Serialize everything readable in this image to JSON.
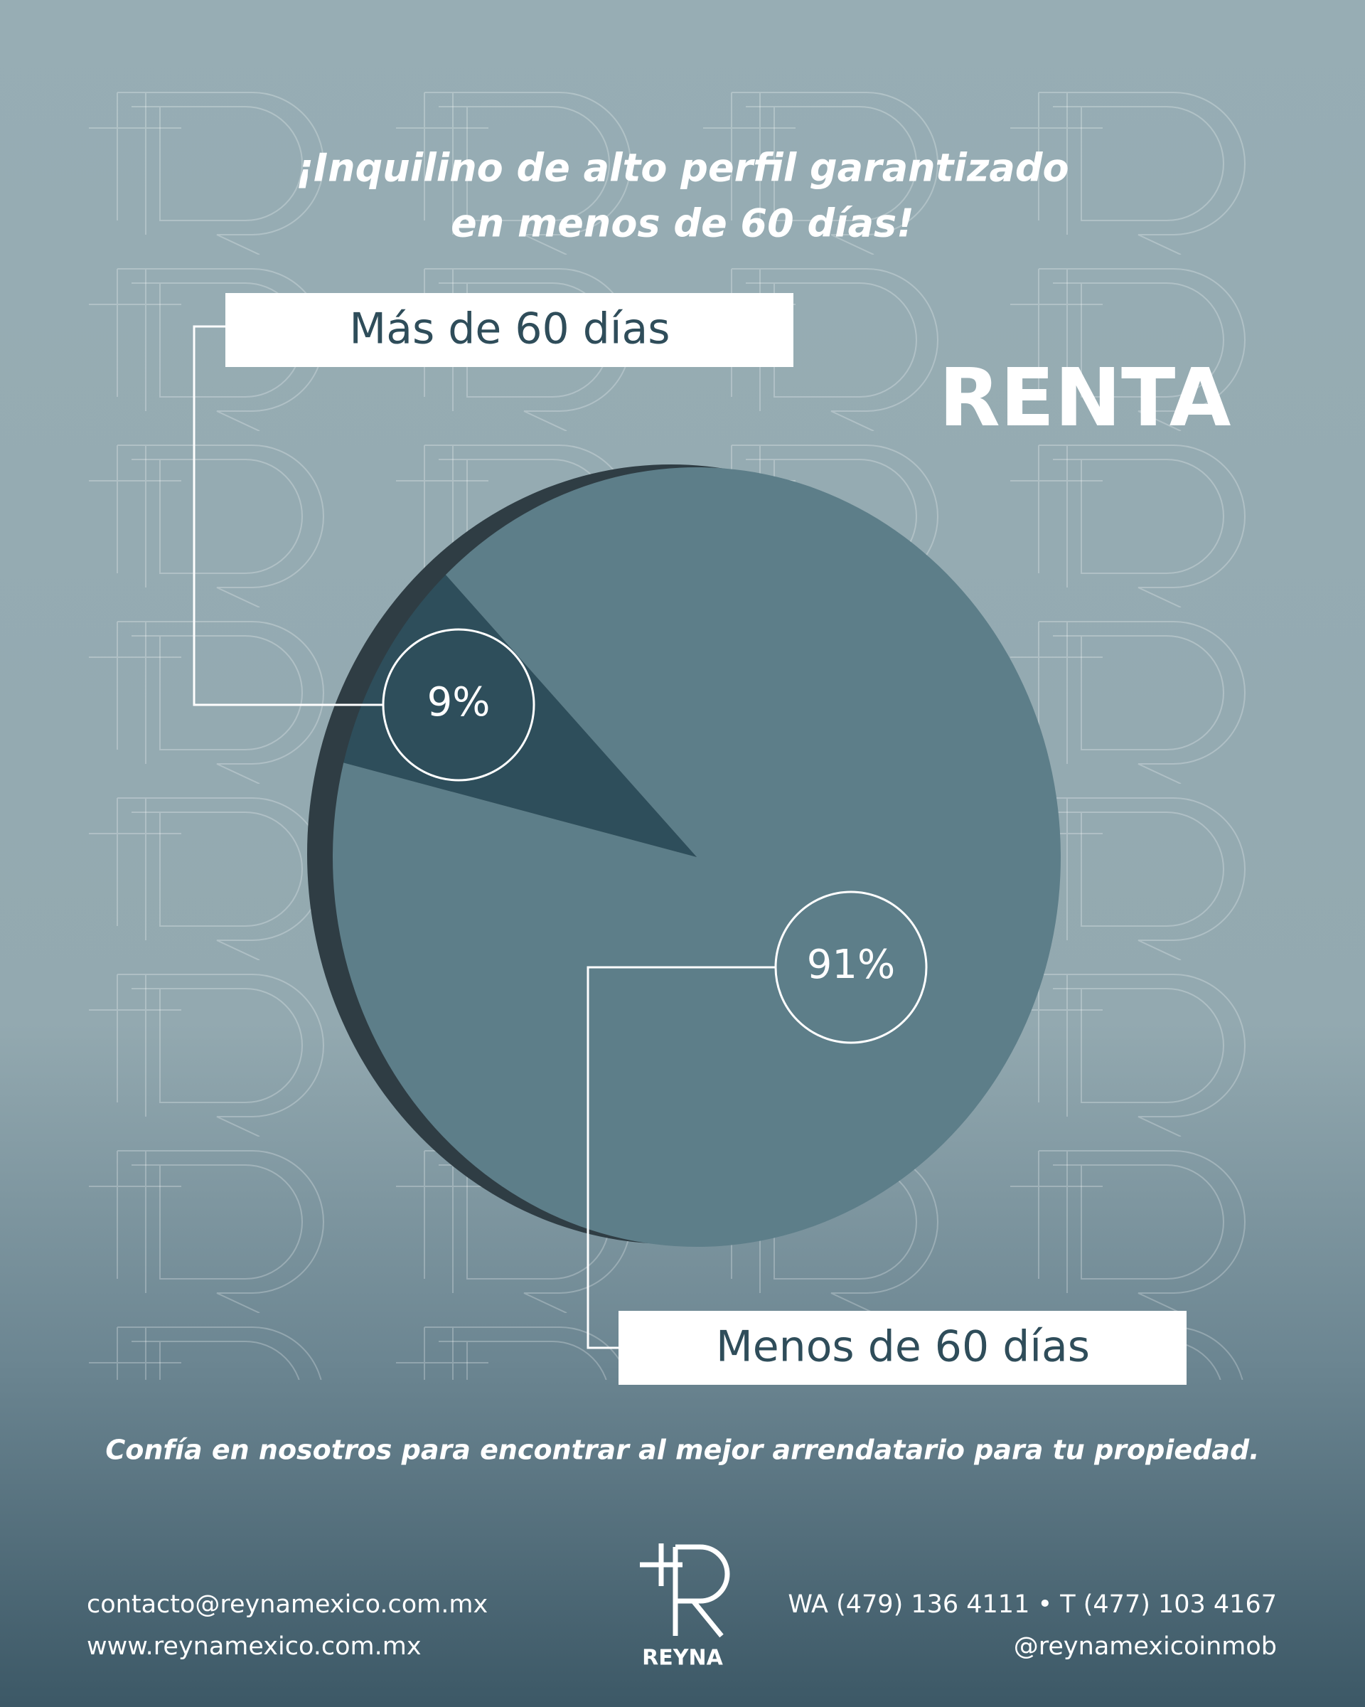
{
  "chart_data": {
    "type": "pie",
    "title": [
      "¡Inquilino de alto perfil garantizado",
      "en menos de 60 días!"
    ],
    "subtitle": "RENTA",
    "categories": [
      "Más de 60 días",
      "Menos de 60 días"
    ],
    "values": [
      9,
      91
    ],
    "value_labels": [
      "9%",
      "91%"
    ],
    "colors": [
      "#2e4e5b",
      "#5d7e89"
    ]
  },
  "tagline": "Confía en nosotros para encontrar al mejor arrendatario para tu propiedad.",
  "footer": {
    "email": "contacto@reynamexico.com.mx",
    "website": "www.reynamexico.com.mx",
    "phones": "WA (479) 136 4111 • T (477) 103 4167",
    "social": "@reynamexicoinmob",
    "logo": "REYNA"
  }
}
